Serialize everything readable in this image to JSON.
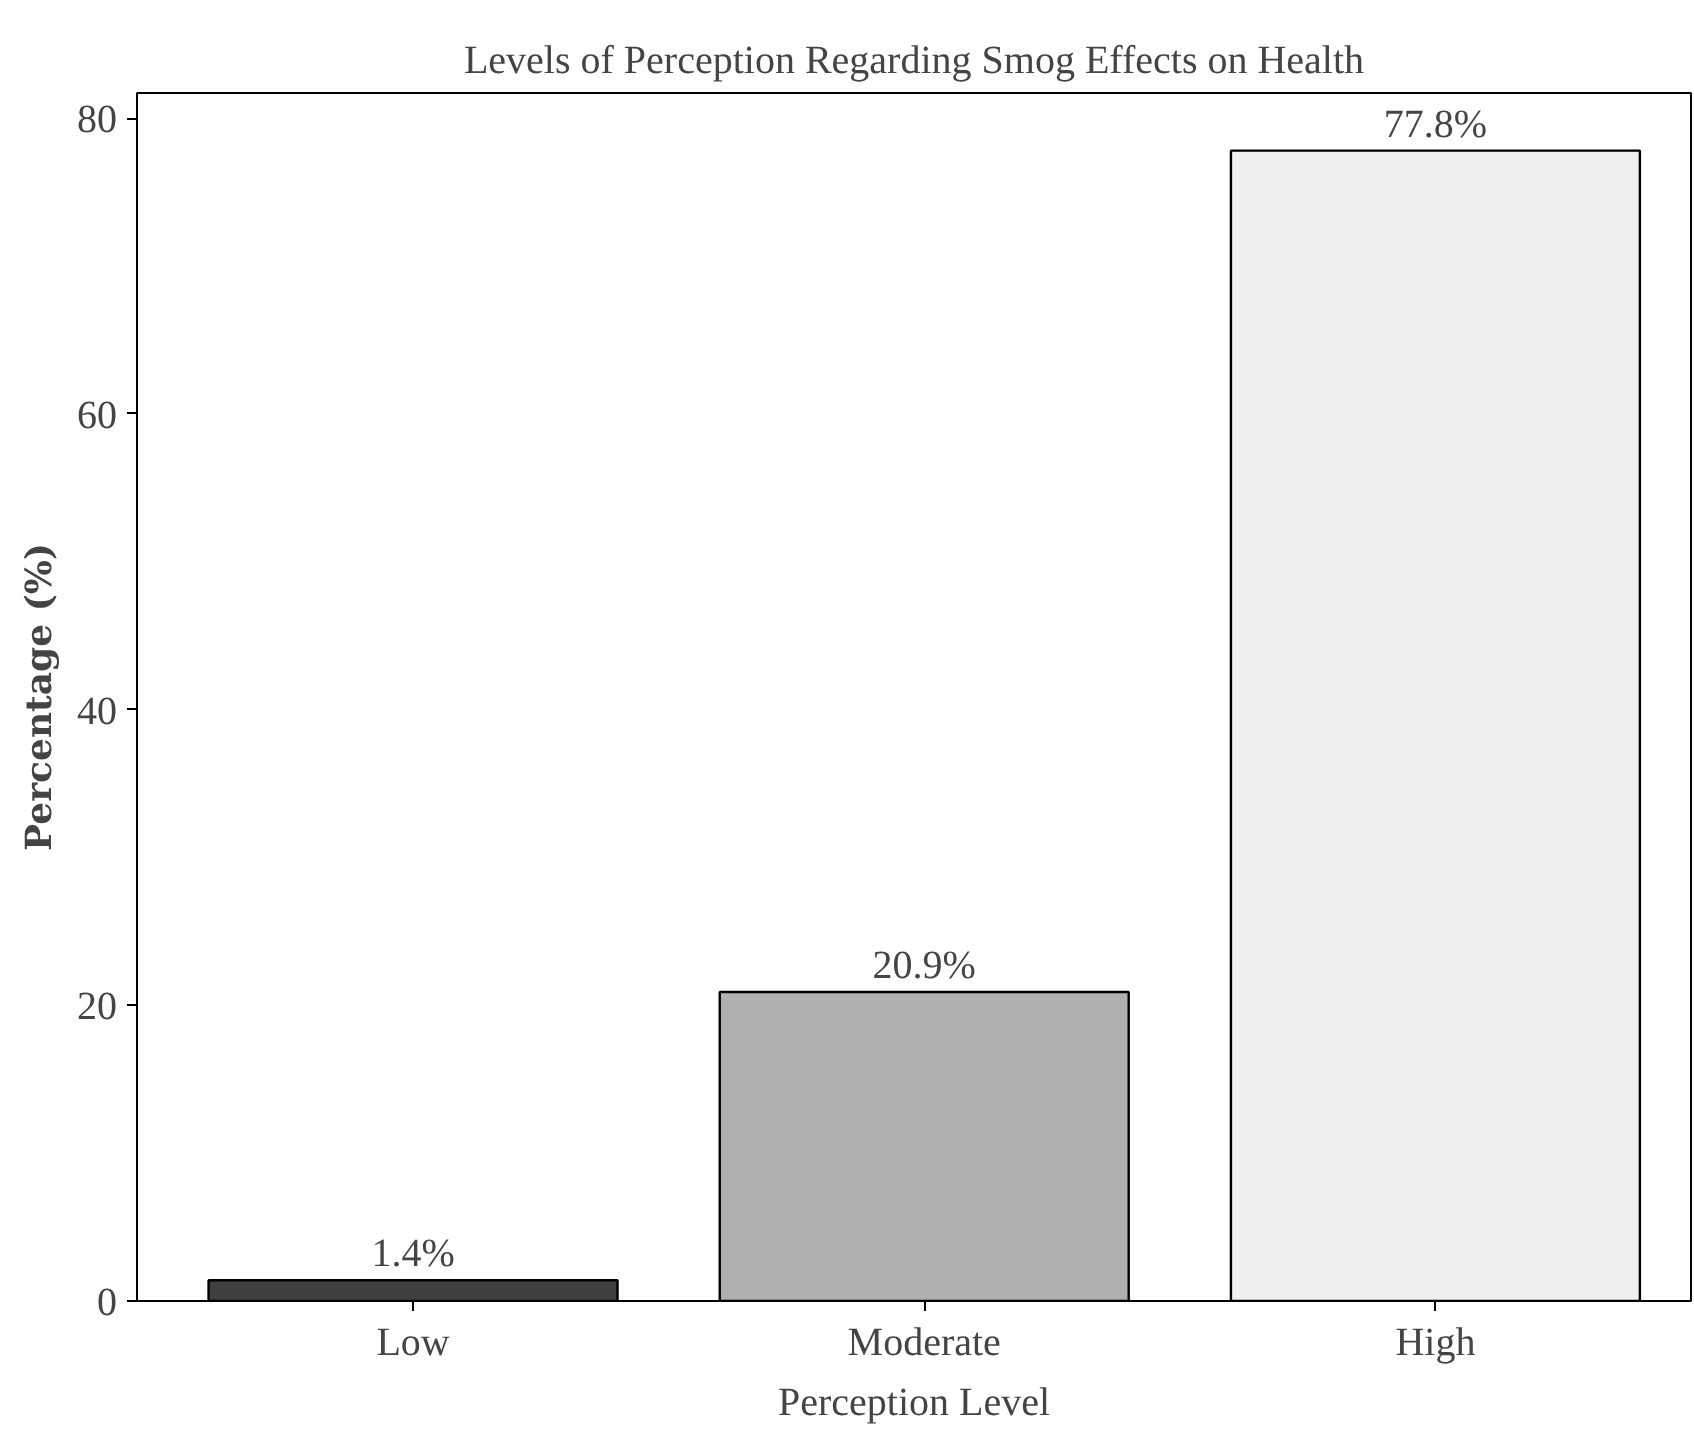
{
  "chart_data": {
    "type": "bar",
    "title": "Levels of Perception Regarding Smog Effects on Health",
    "xlabel": "Perception Level",
    "ylabel": "Percentage (%)",
    "categories": [
      "Low",
      "Moderate",
      "High"
    ],
    "values": [
      1.4,
      20.9,
      77.8
    ],
    "colors": [
      "#404040",
      "#b0b0b0",
      "#f0f0f0"
    ],
    "value_labels": [
      "1.4%",
      "20.9%",
      "77.8%"
    ],
    "ylim": [
      0,
      81.7
    ],
    "yticks": [
      0,
      20,
      40,
      60,
      80
    ],
    "grid": false
  }
}
